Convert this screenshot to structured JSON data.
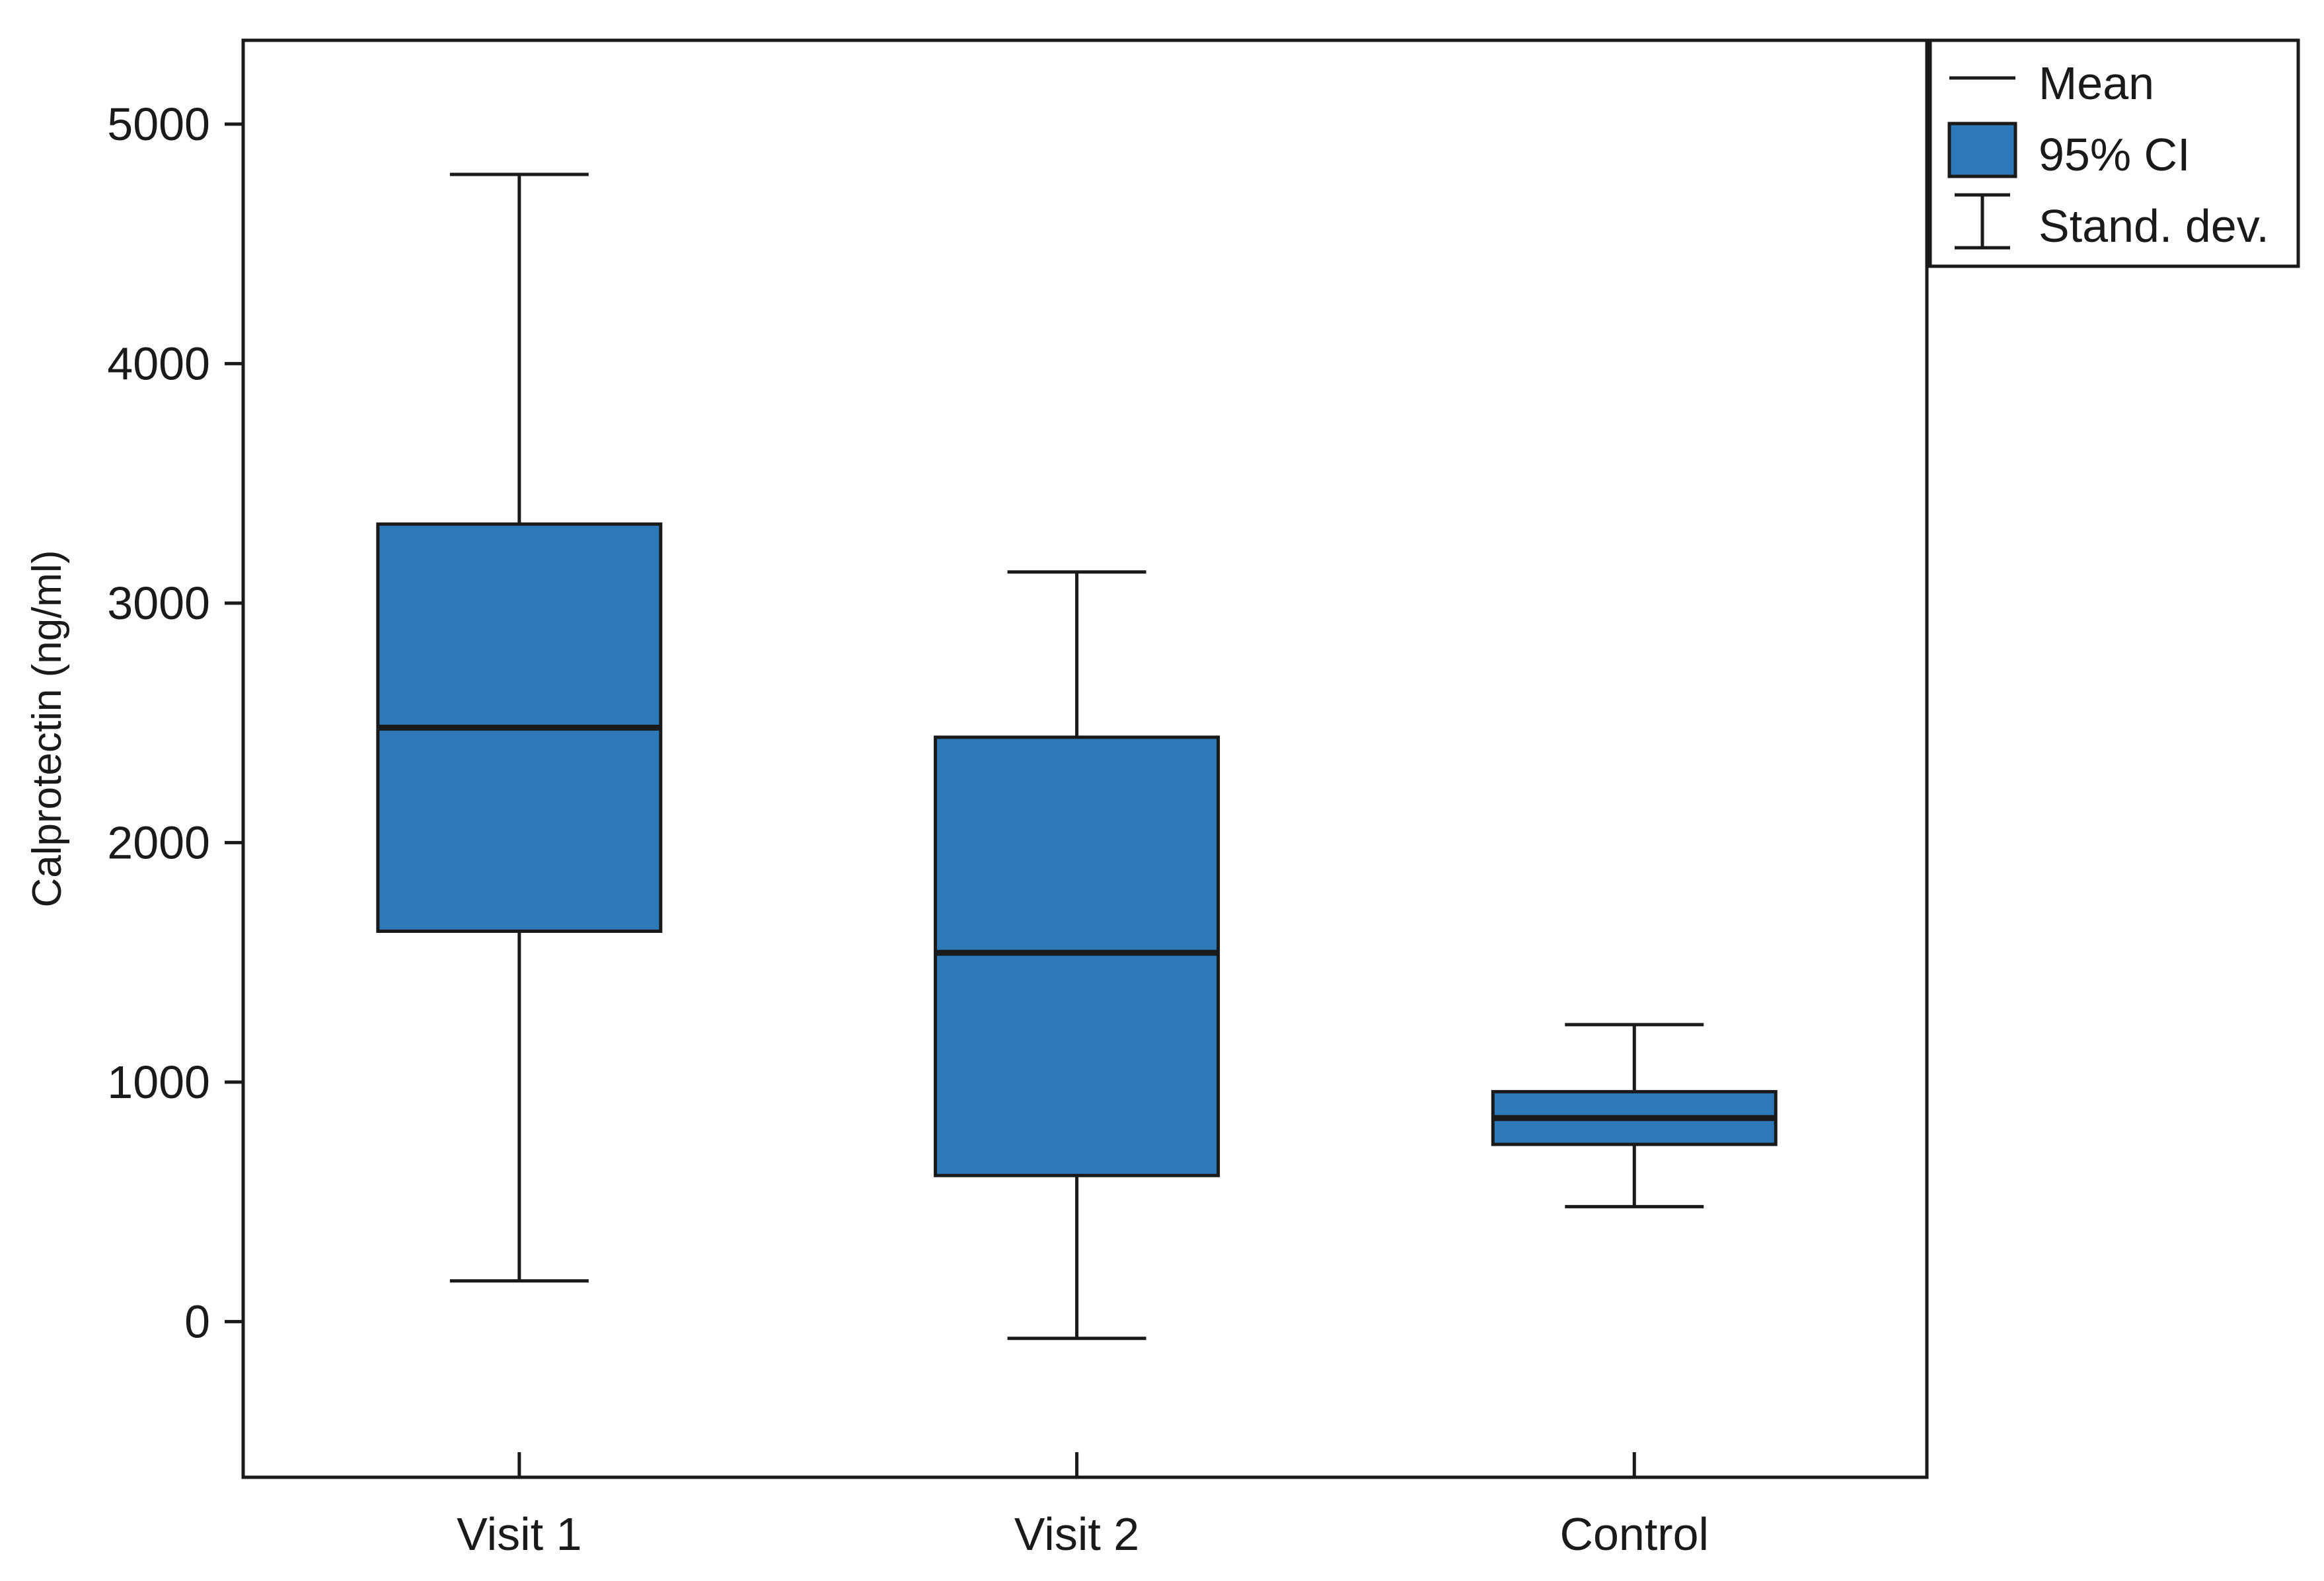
{
  "chart_data": {
    "type": "box",
    "title": "",
    "xlabel": "",
    "ylabel": "Calprotectin (ng/ml)",
    "ylim": [
      -650,
      5350
    ],
    "yticks": [
      0,
      1000,
      2000,
      3000,
      4000,
      5000
    ],
    "grid": false,
    "legend_position": "top-right",
    "categories": [
      "Visit 1",
      "Visit 2",
      "Control"
    ],
    "series": [
      {
        "category": "Visit 1",
        "mean": 2480,
        "ci_low": 1630,
        "ci_high": 3330,
        "sd_low": 170,
        "sd_high": 4790
      },
      {
        "category": "Visit 2",
        "mean": 1540,
        "ci_low": 610,
        "ci_high": 2440,
        "sd_low": -70,
        "sd_high": 3130
      },
      {
        "category": "Control",
        "mean": 850,
        "ci_low": 740,
        "ci_high": 960,
        "sd_low": 480,
        "sd_high": 1240
      }
    ],
    "legend": [
      {
        "key": "mean",
        "label": "Mean"
      },
      {
        "key": "ci",
        "label": "95% CI"
      },
      {
        "key": "sd",
        "label": "Stand. dev."
      }
    ],
    "colors": {
      "box_fill": "#2e7ab8",
      "line": "#1a1a1a"
    }
  }
}
